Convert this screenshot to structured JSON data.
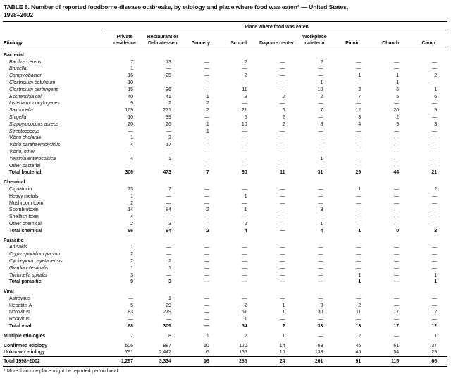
{
  "title_lines": [
    "TABLE 8. Number of reported foodborne-disease outbreaks, by etiology and place where food was eaten* — United States,",
    "1998–2002"
  ],
  "spanner": "Place where food was eaten",
  "etiology_header": "Etiology",
  "columns": [
    "Private residence",
    "Restaurant or Delicatessen",
    "Grocery",
    "School",
    "Daycare center",
    "Workplace cafeteria",
    "Picnic",
    "Church",
    "Camp"
  ],
  "sections": [
    {
      "header": "Bacterial",
      "rows": [
        {
          "label": "Bacillus cereus",
          "italic": true,
          "values": [
            "7",
            "13",
            "—",
            "2",
            "—",
            "2",
            "—",
            "—",
            "—"
          ]
        },
        {
          "label": "Brucella",
          "italic": true,
          "values": [
            "1",
            "—",
            "—",
            "—",
            "—",
            "—",
            "—",
            "—",
            "—"
          ]
        },
        {
          "label": "Campylobacter",
          "italic": true,
          "values": [
            "16",
            "25",
            "—",
            "2",
            "—",
            "—",
            "1",
            "1",
            "2"
          ]
        },
        {
          "label": "Clostridium botulinum",
          "italic": true,
          "values": [
            "10",
            "—",
            "—",
            "—",
            "—",
            "1",
            "—",
            "1",
            "—"
          ]
        },
        {
          "label": "Clostridium perfringens",
          "italic": true,
          "values": [
            "15",
            "36",
            "—",
            "11",
            "—",
            "10",
            "2",
            "6",
            "1"
          ]
        },
        {
          "label": "Escherichia coli",
          "italic": true,
          "values": [
            "40",
            "41",
            "1",
            "9",
            "2",
            "2",
            "7",
            "5",
            "6"
          ]
        },
        {
          "label": "Listeria monocytogenes",
          "italic": true,
          "values": [
            "9",
            "2",
            "2",
            "—",
            "—",
            "—",
            "—",
            "—",
            "—"
          ]
        },
        {
          "label": "Salmonella",
          "italic": true,
          "values": [
            "169",
            "271",
            "2",
            "21",
            "5",
            "7",
            "12",
            "20",
            "9"
          ]
        },
        {
          "label": "Shigella",
          "italic": true,
          "values": [
            "10",
            "39",
            "—",
            "5",
            "2",
            "—",
            "3",
            "2",
            "—"
          ]
        },
        {
          "label": "Staphylococcus aureus",
          "italic": true,
          "values": [
            "20",
            "26",
            "1",
            "10",
            "2",
            "8",
            "4",
            "9",
            "3"
          ]
        },
        {
          "label": "Streptococcus",
          "italic": true,
          "values": [
            "—",
            "—",
            "1",
            "—",
            "—",
            "—",
            "—",
            "—",
            "—"
          ]
        },
        {
          "label": "Vibrio cholerae",
          "italic": true,
          "values": [
            "1",
            "2",
            "—",
            "—",
            "—",
            "—",
            "—",
            "—",
            "—"
          ]
        },
        {
          "label": "Vibrio parahaemolyticus",
          "italic": true,
          "values": [
            "4",
            "17",
            "—",
            "—",
            "—",
            "—",
            "—",
            "—",
            "—"
          ]
        },
        {
          "label": "Vibrio, other",
          "italic": true,
          "values": [
            "—",
            "—",
            "—",
            "—",
            "—",
            "—",
            "—",
            "—",
            "—"
          ]
        },
        {
          "label": "Yersinia enterocolitica",
          "italic": true,
          "values": [
            "4",
            "1",
            "—",
            "—",
            "—",
            "1",
            "—",
            "—",
            "—"
          ]
        },
        {
          "label": "Other bacterial",
          "italic": false,
          "values": [
            "—",
            "—",
            "—",
            "—",
            "—",
            "—",
            "—",
            "—",
            "—"
          ]
        }
      ],
      "total": {
        "label": "Total bacterial",
        "values": [
          "306",
          "473",
          "7",
          "60",
          "11",
          "31",
          "29",
          "44",
          "21"
        ]
      }
    },
    {
      "header": "Chemical",
      "rows": [
        {
          "label": "Ciguatoxin",
          "italic": false,
          "values": [
            "73",
            "7",
            "—",
            "—",
            "—",
            "—",
            "1",
            "—",
            "2"
          ]
        },
        {
          "label": "Heavy metals",
          "italic": false,
          "values": [
            "1",
            "—",
            "—",
            "1",
            "—",
            "—",
            "—",
            "—",
            "—"
          ]
        },
        {
          "label": "Mushroom toxin",
          "italic": false,
          "values": [
            "2",
            "—",
            "—",
            "—",
            "—",
            "—",
            "—",
            "—",
            "—"
          ]
        },
        {
          "label": "Scombrotoxin",
          "italic": false,
          "values": [
            "14",
            "84",
            "2",
            "1",
            "—",
            "3",
            "—",
            "—",
            "—"
          ]
        },
        {
          "label": "Shellfish toxin",
          "italic": false,
          "values": [
            "4",
            "—",
            "—",
            "—",
            "—",
            "—",
            "—",
            "—",
            "—"
          ]
        },
        {
          "label": "Other chemical",
          "italic": false,
          "values": [
            "2",
            "3",
            "—",
            "2",
            "—",
            "1",
            "—",
            "—",
            "—"
          ]
        }
      ],
      "total": {
        "label": "Total chemical",
        "values": [
          "96",
          "94",
          "2",
          "4",
          "—",
          "4",
          "1",
          "0",
          "2"
        ]
      }
    },
    {
      "header": "Parasitic",
      "rows": [
        {
          "label": "Anisakis",
          "italic": true,
          "values": [
            "1",
            "—",
            "—",
            "—",
            "—",
            "—",
            "—",
            "—",
            "—"
          ]
        },
        {
          "label": "Cryptosporidium parvum",
          "italic": true,
          "values": [
            "2",
            "—",
            "—",
            "—",
            "—",
            "—",
            "—",
            "—",
            "—"
          ]
        },
        {
          "label": "Cyclospora cayetanensis",
          "italic": true,
          "values": [
            "2",
            "2",
            "—",
            "—",
            "—",
            "—",
            "—",
            "—",
            "—"
          ]
        },
        {
          "label": "Giardia intestinalis",
          "italic": true,
          "values": [
            "1",
            "1",
            "—",
            "—",
            "—",
            "—",
            "—",
            "—",
            "—"
          ]
        },
        {
          "label": "Trichinella spiralis",
          "italic": true,
          "values": [
            "3",
            "—",
            "—",
            "—",
            "—",
            "—",
            "1",
            "—",
            "1"
          ]
        }
      ],
      "total": {
        "label": "Total parasitic",
        "values": [
          "9",
          "3",
          "—",
          "—",
          "—",
          "—",
          "1",
          "—",
          "1"
        ]
      }
    },
    {
      "header": "Viral",
      "rows": [
        {
          "label": "Astrovirus",
          "italic": false,
          "values": [
            "—",
            "1",
            "—",
            "—",
            "—",
            "—",
            "—",
            "—",
            "—"
          ]
        },
        {
          "label": "Hepatitis A",
          "italic": false,
          "values": [
            "5",
            "29",
            "—",
            "2",
            "1",
            "3",
            "2",
            "—",
            "—"
          ]
        },
        {
          "label": "Norovirus",
          "italic": false,
          "values": [
            "83",
            "279",
            "—",
            "51",
            "1",
            "30",
            "11",
            "17",
            "12"
          ]
        },
        {
          "label": "Rotavirus",
          "italic": false,
          "values": [
            "—",
            "—",
            "—",
            "1",
            "—",
            "—",
            "—",
            "—",
            "—"
          ]
        }
      ],
      "total": {
        "label": "Total viral",
        "values": [
          "88",
          "309",
          "—",
          "54",
          "2",
          "33",
          "13",
          "17",
          "12"
        ]
      }
    }
  ],
  "summary_rows": [
    {
      "label": "Multiple etiologies",
      "values": [
        "7",
        "8",
        "1",
        "2",
        "1",
        "—",
        "2",
        "—",
        "1"
      ]
    },
    {
      "label": "Confirmed etiology",
      "values": [
        "506",
        "887",
        "10",
        "120",
        "14",
        "68",
        "46",
        "61",
        "37"
      ]
    },
    {
      "label": "Unknown etiology",
      "values": [
        "791",
        "2,447",
        "6",
        "165",
        "10",
        "133",
        "45",
        "54",
        "29"
      ]
    }
  ],
  "total_row": {
    "label": "Total 1998–2002",
    "values": [
      "1,297",
      "3,334",
      "16",
      "285",
      "24",
      "201",
      "91",
      "115",
      "66"
    ]
  },
  "footnote": "* More than one place might be reported per outbreak."
}
